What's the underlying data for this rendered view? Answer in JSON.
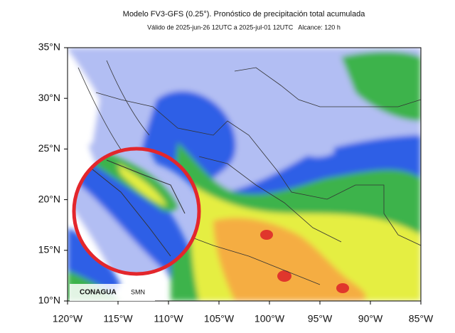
{
  "title": "Modelo FV3-GFS (0.25°). Pronóstico de precipitación total acumulada",
  "subtitle": "Válido de 2025-jun-26 12UTC a 2025-jul-01 12UTC   Alcance: 120 h",
  "map": {
    "xlim": [
      -120,
      -85
    ],
    "ylim": [
      10,
      35
    ],
    "xticks": [
      {
        "value": -120,
        "label": "120°W"
      },
      {
        "value": -115,
        "label": "115°W"
      },
      {
        "value": -110,
        "label": "110°W"
      },
      {
        "value": -105,
        "label": "105°W"
      },
      {
        "value": -100,
        "label": "100°W"
      },
      {
        "value": -95,
        "label": "95°W"
      },
      {
        "value": -90,
        "label": "90°W"
      },
      {
        "value": -85,
        "label": "85°W"
      }
    ],
    "yticks": [
      {
        "value": 10,
        "label": "10°N"
      },
      {
        "value": 15,
        "label": "15°N"
      },
      {
        "value": 20,
        "label": "20°N"
      },
      {
        "value": 25,
        "label": "25°N"
      },
      {
        "value": 30,
        "label": "30°N"
      },
      {
        "value": 35,
        "label": "35°N"
      }
    ]
  },
  "logos": [
    "CONAGUA",
    "SMN"
  ]
}
